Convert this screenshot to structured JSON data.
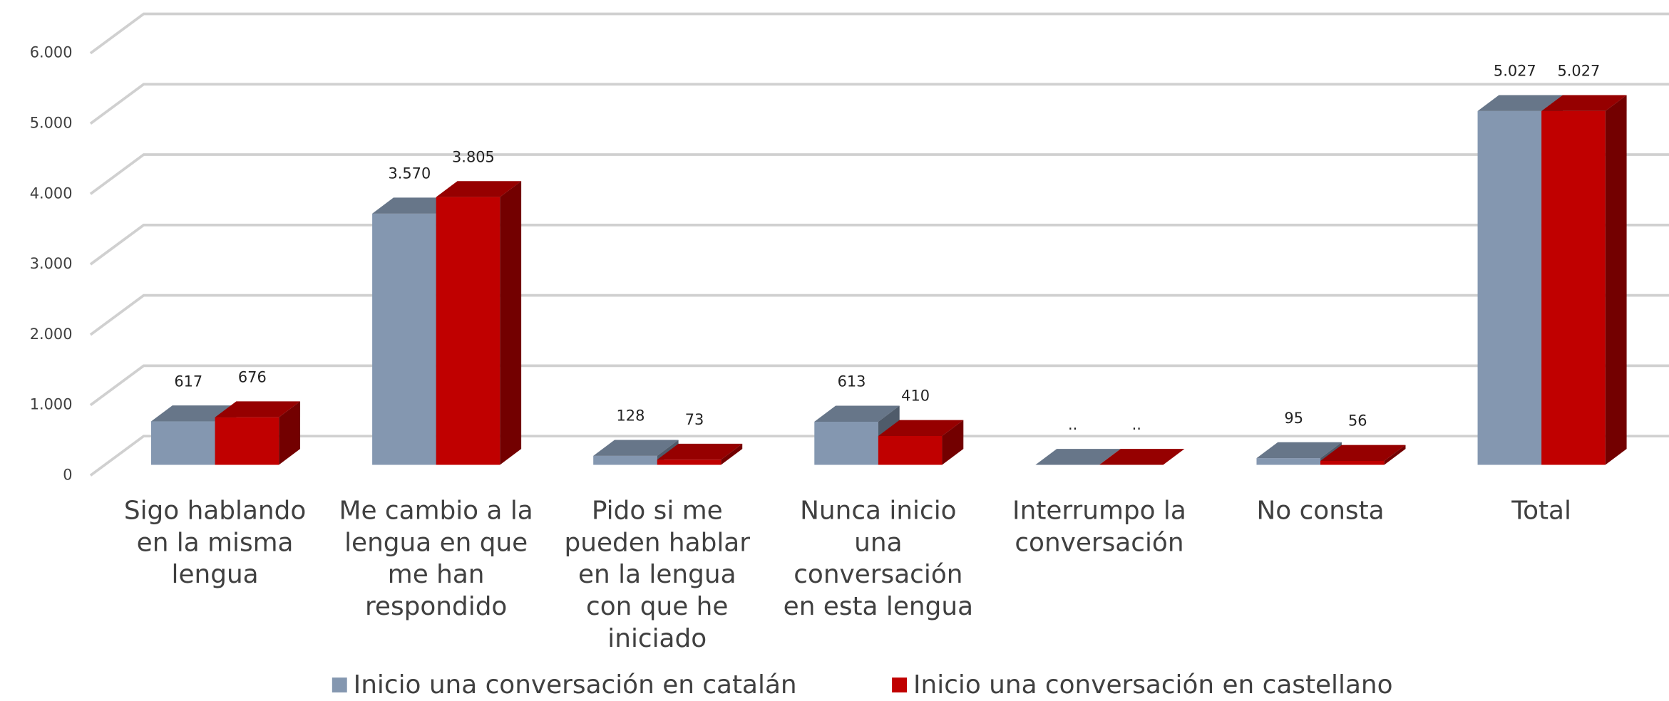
{
  "chart_data": {
    "type": "bar3d",
    "categories": [
      "Sigo hablando en la misma lengua",
      "Me cambio a la lengua en que me han respondido",
      "Pido si me pueden hablar en la lengua con que he iniciado",
      "Nunca inicio una conversación en esta lengua",
      "Interrumpo la conversación",
      "No consta",
      "Total"
    ],
    "series": [
      {
        "name": "Inicio una conversación en catalán",
        "color": "#8497b0",
        "values": [
          617,
          3570,
          128,
          613,
          null,
          95,
          5027
        ],
        "value_labels": [
          "617",
          "3.570",
          "128",
          "613",
          "..",
          "95",
          "5.027"
        ]
      },
      {
        "name": "Inicio una conversación en castellano",
        "color": "#c00000",
        "values": [
          676,
          3805,
          73,
          410,
          null,
          56,
          5027
        ],
        "value_labels": [
          "676",
          "3.805",
          "73",
          "410",
          "..",
          "56",
          "5.027"
        ]
      }
    ],
    "ylim": [
      0,
      6000
    ],
    "yticks": [
      0,
      {
        "value": 1000,
        "label": "1.000"
      },
      {
        "value": 2000,
        "label": "2.000"
      },
      {
        "value": 3000,
        "label": "3.000"
      },
      {
        "value": 4000,
        "label": "4.000"
      },
      {
        "value": 5000,
        "label": "5.000"
      },
      {
        "value": 6000,
        "label": "6.000"
      }
    ],
    "grid": true,
    "legend": "bottom"
  }
}
